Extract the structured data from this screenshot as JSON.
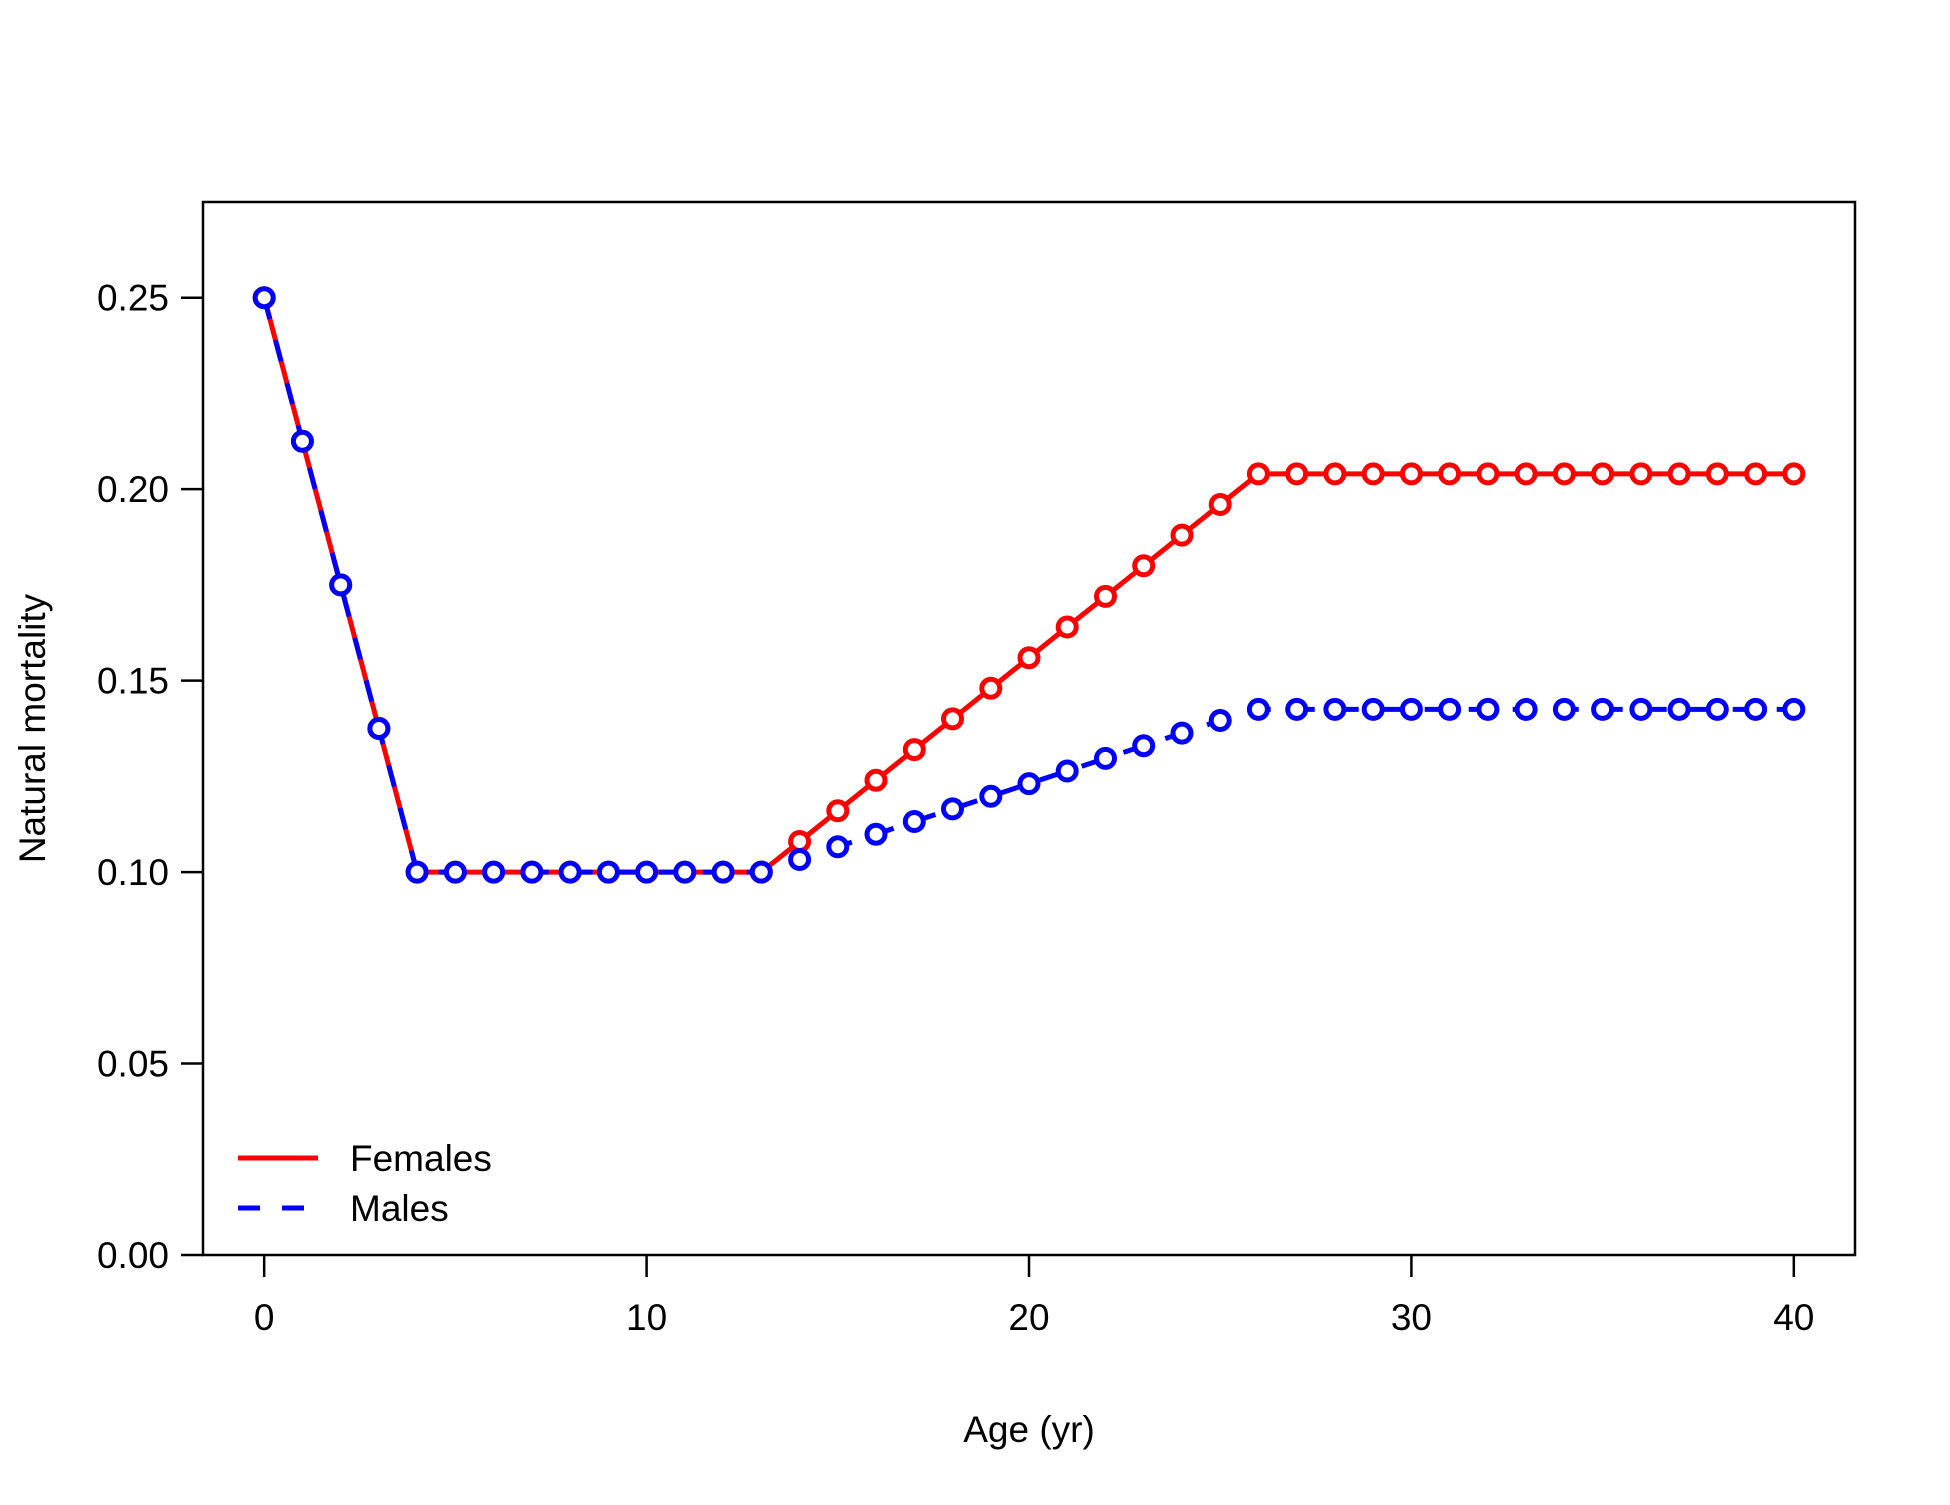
{
  "chart_data": {
    "type": "line",
    "xlabel": "Age (yr)",
    "ylabel": "Natural mortality",
    "xlim": [
      -1.6,
      41.6
    ],
    "ylim": [
      0,
      0.275
    ],
    "x_ticks": [
      0,
      10,
      20,
      30,
      40
    ],
    "x_tick_labels": [
      "0",
      "10",
      "20",
      "30",
      "40"
    ],
    "y_ticks": [
      0,
      0.05,
      0.1,
      0.15,
      0.2,
      0.25
    ],
    "y_tick_labels": [
      "0.00",
      "0.05",
      "0.10",
      "0.15",
      "0.20",
      "0.25"
    ],
    "grid": false,
    "legend_position": "bottom-left",
    "x": [
      0,
      1,
      2,
      3,
      4,
      5,
      6,
      7,
      8,
      9,
      10,
      11,
      12,
      13,
      14,
      15,
      16,
      17,
      18,
      19,
      20,
      21,
      22,
      23,
      24,
      25,
      26,
      27,
      28,
      29,
      30,
      31,
      32,
      33,
      34,
      35,
      36,
      37,
      38,
      39,
      40
    ],
    "series": [
      {
        "name": "Females",
        "color": "#ff0000",
        "line_style": "solid",
        "marker": "open-circle",
        "values": [
          0.25,
          0.2125,
          0.175,
          0.1375,
          0.1,
          0.1,
          0.1,
          0.1,
          0.1,
          0.1,
          0.1,
          0.1,
          0.1,
          0.1,
          0.108,
          0.116,
          0.124,
          0.132,
          0.14,
          0.148,
          0.156,
          0.164,
          0.172,
          0.18,
          0.188,
          0.196,
          0.204,
          0.204,
          0.204,
          0.204,
          0.204,
          0.204,
          0.204,
          0.204,
          0.204,
          0.204,
          0.204,
          0.204,
          0.204,
          0.204,
          0.204
        ]
      },
      {
        "name": "Males",
        "color": "#0000ff",
        "line_style": "dashed",
        "marker": "open-circle",
        "values": [
          0.25,
          0.2125,
          0.175,
          0.1375,
          0.1,
          0.1,
          0.1,
          0.1,
          0.1,
          0.1,
          0.1,
          0.1,
          0.1,
          0.1,
          0.1033,
          0.1066,
          0.1099,
          0.1132,
          0.1165,
          0.1198,
          0.1231,
          0.1264,
          0.1297,
          0.133,
          0.1363,
          0.1396,
          0.1425,
          0.1425,
          0.1425,
          0.1425,
          0.1425,
          0.1425,
          0.1425,
          0.1425,
          0.1425,
          0.1425,
          0.1425,
          0.1425,
          0.1425,
          0.1425,
          0.1425
        ]
      }
    ]
  }
}
